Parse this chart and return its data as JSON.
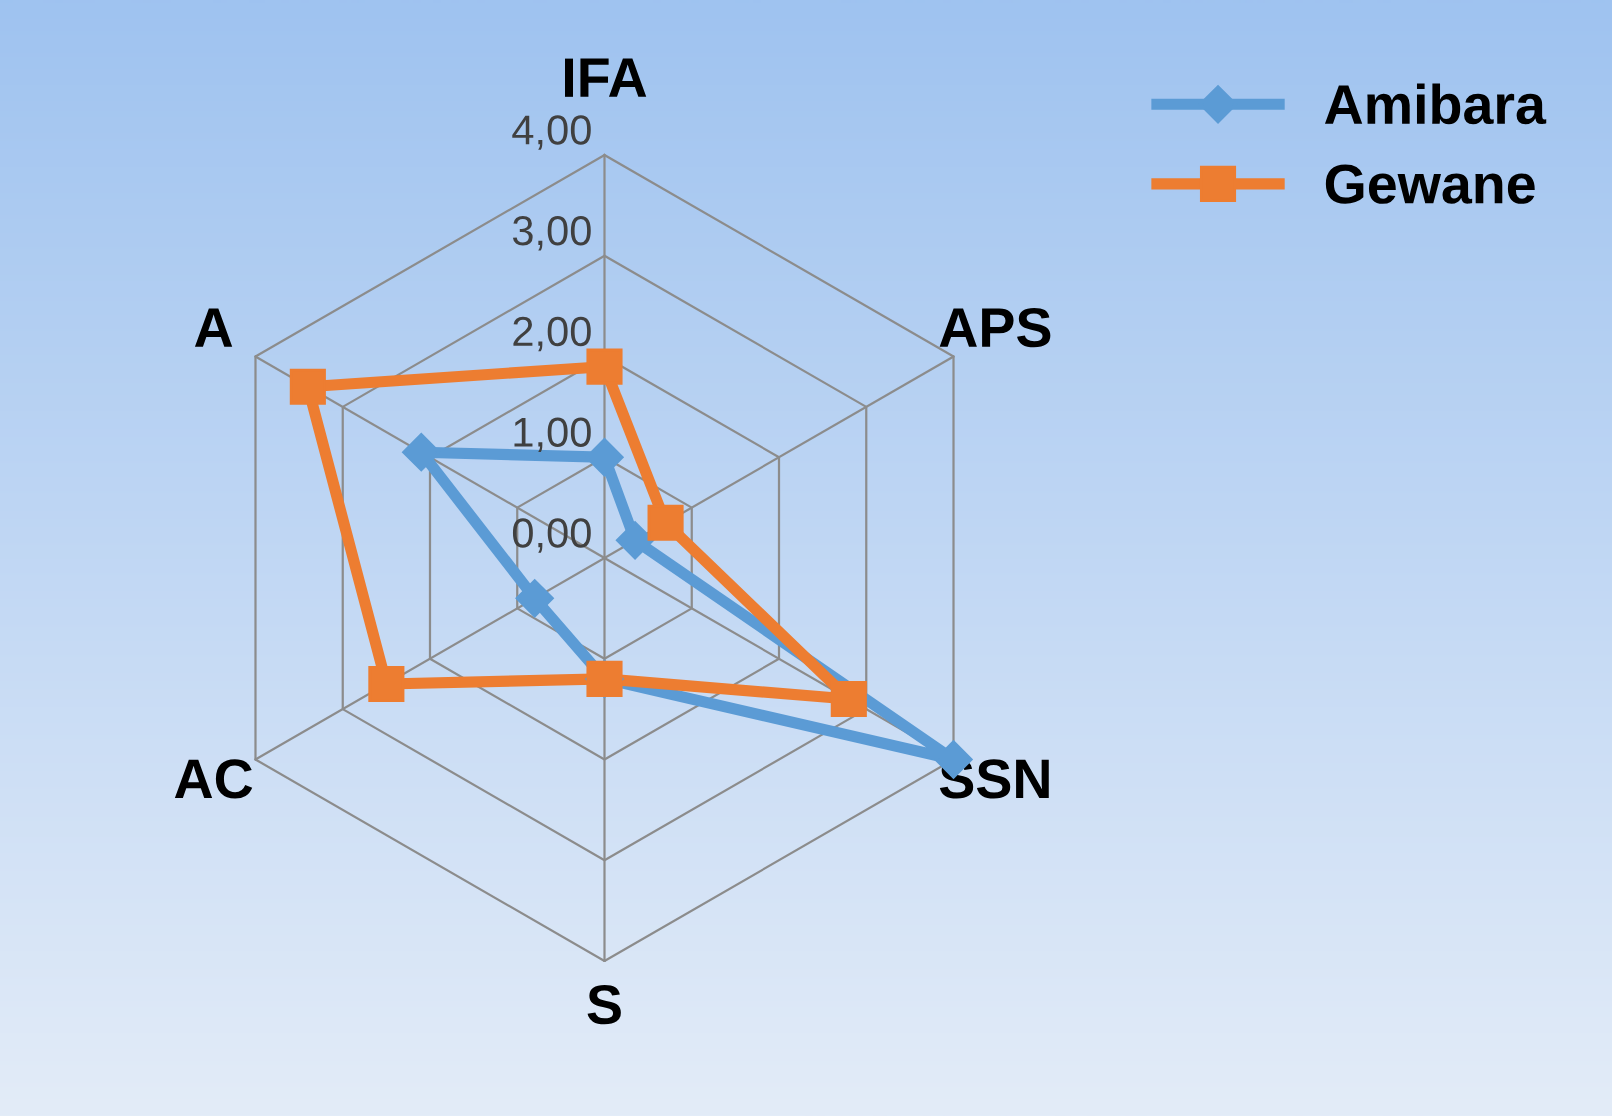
{
  "chart_data": {
    "type": "radar",
    "categories": [
      "IFA",
      "APS",
      "SSN",
      "S",
      "AC",
      "A"
    ],
    "series": [
      {
        "name": "Amibara",
        "color": "#5b9bd5",
        "values": [
          1.0,
          0.35,
          4.0,
          1.2,
          0.8,
          2.1
        ],
        "marker": "diamond"
      },
      {
        "name": "Gewane",
        "color": "#ed7d31",
        "values": [
          1.9,
          0.7,
          2.8,
          1.2,
          2.5,
          3.4
        ],
        "marker": "square"
      }
    ],
    "ylim": [
      0,
      4
    ],
    "yticks": [
      {
        "value": 0,
        "label": "0,00"
      },
      {
        "value": 1,
        "label": "1,00"
      },
      {
        "value": 2,
        "label": "2,00"
      },
      {
        "value": 3,
        "label": "3,00"
      },
      {
        "value": 4,
        "label": "4,00"
      }
    ],
    "grid": true,
    "legend": "top right"
  }
}
